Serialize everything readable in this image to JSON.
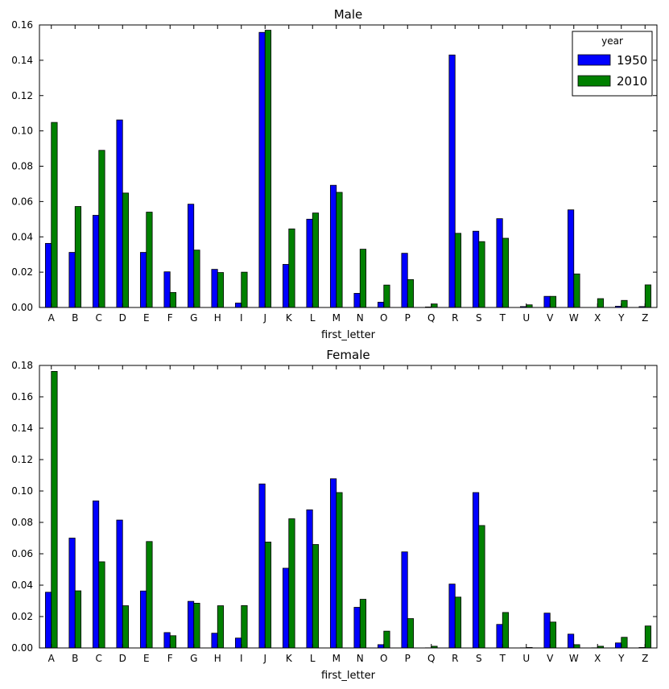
{
  "chart_data": [
    {
      "type": "bar",
      "title": "Male",
      "xlabel": "first_letter",
      "ylabel": "",
      "ylim": [
        0,
        0.16
      ],
      "yticks": [
        0.0,
        0.02,
        0.04,
        0.06,
        0.08,
        0.1,
        0.12,
        0.14,
        0.16
      ],
      "ytick_labels": [
        "0.00",
        "0.02",
        "0.04",
        "0.06",
        "0.08",
        "0.10",
        "0.12",
        "0.14",
        "0.16"
      ],
      "categories": [
        "A",
        "B",
        "C",
        "D",
        "E",
        "F",
        "G",
        "H",
        "I",
        "J",
        "K",
        "L",
        "M",
        "N",
        "O",
        "P",
        "Q",
        "R",
        "S",
        "T",
        "U",
        "V",
        "W",
        "X",
        "Y",
        "Z"
      ],
      "legend": {
        "title": "year",
        "placement": "top-right"
      },
      "series": [
        {
          "name": "1950",
          "color": "#0000ff",
          "values": [
            0.0363,
            0.0312,
            0.0522,
            0.1062,
            0.0312,
            0.0202,
            0.0585,
            0.0216,
            0.0025,
            0.1558,
            0.0244,
            0.05,
            0.0692,
            0.008,
            0.003,
            0.0307,
            0.0003,
            0.143,
            0.0432,
            0.0503,
            0.0005,
            0.0063,
            0.0553,
            0.0,
            0.0007,
            0.0005
          ]
        },
        {
          "name": "2010",
          "color": "#008000",
          "values": [
            0.1048,
            0.0572,
            0.089,
            0.0648,
            0.054,
            0.0085,
            0.0325,
            0.0198,
            0.02,
            0.157,
            0.0445,
            0.0535,
            0.0652,
            0.033,
            0.0127,
            0.0158,
            0.002,
            0.042,
            0.0373,
            0.0392,
            0.0015,
            0.0063,
            0.019,
            0.005,
            0.004,
            0.0128
          ]
        }
      ]
    },
    {
      "type": "bar",
      "title": "Female",
      "xlabel": "first_letter",
      "ylabel": "",
      "ylim": [
        0,
        0.18
      ],
      "yticks": [
        0.0,
        0.02,
        0.04,
        0.06,
        0.08,
        0.1,
        0.12,
        0.14,
        0.16,
        0.18
      ],
      "ytick_labels": [
        "0.00",
        "0.02",
        "0.04",
        "0.06",
        "0.08",
        "0.10",
        "0.12",
        "0.14",
        "0.16",
        "0.18"
      ],
      "categories": [
        "A",
        "B",
        "C",
        "D",
        "E",
        "F",
        "G",
        "H",
        "I",
        "J",
        "K",
        "L",
        "M",
        "N",
        "O",
        "P",
        "Q",
        "R",
        "S",
        "T",
        "U",
        "V",
        "W",
        "X",
        "Y",
        "Z"
      ],
      "series": [
        {
          "name": "1950",
          "color": "#0000ff",
          "values": [
            0.0355,
            0.07,
            0.0937,
            0.0815,
            0.0363,
            0.0098,
            0.0297,
            0.0094,
            0.0063,
            0.1045,
            0.0508,
            0.088,
            0.1078,
            0.0259,
            0.0021,
            0.0612,
            0.0001,
            0.0407,
            0.099,
            0.015,
            0.0001,
            0.0222,
            0.0088,
            0.0001,
            0.0032,
            0.0003
          ]
        },
        {
          "name": "2010",
          "color": "#008000",
          "values": [
            0.1762,
            0.0364,
            0.0549,
            0.0269,
            0.0678,
            0.0078,
            0.0285,
            0.0269,
            0.027,
            0.0675,
            0.0823,
            0.0659,
            0.099,
            0.031,
            0.0107,
            0.0187,
            0.0011,
            0.0324,
            0.078,
            0.0226,
            0.0003,
            0.0165,
            0.0021,
            0.0011,
            0.0068,
            0.014
          ]
        }
      ]
    }
  ]
}
